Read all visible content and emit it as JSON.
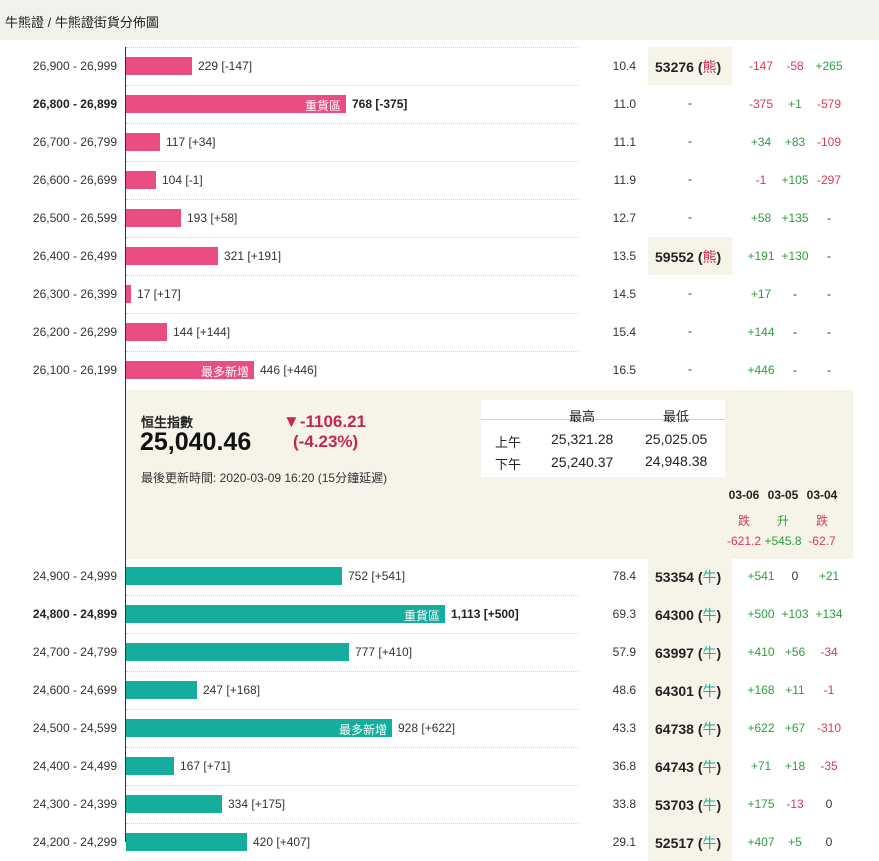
{
  "breadcrumb": "牛熊證 / 牛熊證街貨分佈圖",
  "colors": {
    "bear": "#ea4d83",
    "bull": "#14ad9e",
    "positive": "#2e9e3e",
    "negative": "#d63a56"
  },
  "bear_rows": [
    {
      "range": "26,900 - 26,999",
      "label": "229 [-147]",
      "count": 229,
      "inner": "",
      "pct": "10.4",
      "code": "53276",
      "kind": "熊",
      "c1": "-147",
      "c2": "-58",
      "c3": "+265"
    },
    {
      "range": "26,800 - 26,899",
      "label": "768 [-375]",
      "count": 768,
      "inner": "重貨區",
      "pct": "11.0",
      "code": "-",
      "kind": "",
      "c1": "-375",
      "c2": "+1",
      "c3": "-579"
    },
    {
      "range": "26,700 - 26,799",
      "label": "117 [+34]",
      "count": 117,
      "inner": "",
      "pct": "11.1",
      "code": "-",
      "kind": "",
      "c1": "+34",
      "c2": "+83",
      "c3": "-109"
    },
    {
      "range": "26,600 - 26,699",
      "label": "104 [-1]",
      "count": 104,
      "inner": "",
      "pct": "11.9",
      "code": "-",
      "kind": "",
      "c1": "-1",
      "c2": "+105",
      "c3": "-297"
    },
    {
      "range": "26,500 - 26,599",
      "label": "193 [+58]",
      "count": 193,
      "inner": "",
      "pct": "12.7",
      "code": "-",
      "kind": "",
      "c1": "+58",
      "c2": "+135",
      "c3": "-"
    },
    {
      "range": "26,400 - 26,499",
      "label": "321 [+191]",
      "count": 321,
      "inner": "",
      "pct": "13.5",
      "code": "59552",
      "kind": "熊",
      "c1": "+191",
      "c2": "+130",
      "c3": "-"
    },
    {
      "range": "26,300 - 26,399",
      "label": "17 [+17]",
      "count": 17,
      "inner": "",
      "pct": "14.5",
      "code": "-",
      "kind": "",
      "c1": "+17",
      "c2": "-",
      "c3": "-"
    },
    {
      "range": "26,200 - 26,299",
      "label": "144 [+144]",
      "count": 144,
      "inner": "",
      "pct": "15.4",
      "code": "-",
      "kind": "",
      "c1": "+144",
      "c2": "-",
      "c3": "-"
    },
    {
      "range": "26,100 - 26,199",
      "label": "446 [+446]",
      "count": 446,
      "inner": "最多新增",
      "pct": "16.5",
      "code": "-",
      "kind": "",
      "c1": "+446",
      "c2": "-",
      "c3": "-"
    }
  ],
  "index": {
    "name": "恒生指數",
    "value": "25,040.46",
    "change": "▼-1106.21",
    "change_pct": "(-4.23%)",
    "updated": "最後更新時間: 2020-03-09 16:20 (15分鐘延遲)",
    "hilo": {
      "high_label": "最高",
      "low_label": "最低",
      "am_label": "上午",
      "am_high": "25,321.28",
      "am_low": "25,025.05",
      "pm_label": "下午",
      "pm_high": "25,240.37",
      "pm_low": "24,948.38"
    },
    "days": [
      {
        "date": "03-06",
        "move": "跌",
        "points": "-621.2"
      },
      {
        "date": "03-05",
        "move": "升",
        "points": "+545.8"
      },
      {
        "date": "03-04",
        "move": "跌",
        "points": "-62.7"
      }
    ]
  },
  "bull_rows": [
    {
      "range": "24,900 - 24,999",
      "label": "752 [+541]",
      "count": 752,
      "inner": "",
      "pct": "78.4",
      "code": "53354",
      "kind": "牛",
      "c1": "+541",
      "c2": "0",
      "c3": "+21"
    },
    {
      "range": "24,800 - 24,899",
      "label": "1,113 [+500]",
      "count": 1113,
      "inner": "重貨區",
      "pct": "69.3",
      "code": "64300",
      "kind": "牛",
      "c1": "+500",
      "c2": "+103",
      "c3": "+134"
    },
    {
      "range": "24,700 - 24,799",
      "label": "777 [+410]",
      "count": 777,
      "inner": "",
      "pct": "57.9",
      "code": "63997",
      "kind": "牛",
      "c1": "+410",
      "c2": "+56",
      "c3": "-34"
    },
    {
      "range": "24,600 - 24,699",
      "label": "247 [+168]",
      "count": 247,
      "inner": "",
      "pct": "48.6",
      "code": "64301",
      "kind": "牛",
      "c1": "+168",
      "c2": "+11",
      "c3": "-1"
    },
    {
      "range": "24,500 - 24,599",
      "label": "928 [+622]",
      "count": 928,
      "inner": "最多新增",
      "pct": "43.3",
      "code": "64738",
      "kind": "牛",
      "c1": "+622",
      "c2": "+67",
      "c3": "-310"
    },
    {
      "range": "24,400 - 24,499",
      "label": "167 [+71]",
      "count": 167,
      "inner": "",
      "pct": "36.8",
      "code": "64743",
      "kind": "牛",
      "c1": "+71",
      "c2": "+18",
      "c3": "-35"
    },
    {
      "range": "24,300 - 24,399",
      "label": "334 [+175]",
      "count": 334,
      "inner": "",
      "pct": "33.8",
      "code": "53703",
      "kind": "牛",
      "c1": "+175",
      "c2": "-13",
      "c3": "0"
    },
    {
      "range": "24,200 - 24,299",
      "label": "420 [+407]",
      "count": 420,
      "inner": "",
      "pct": "29.1",
      "code": "52517",
      "kind": "牛",
      "c1": "+407",
      "c2": "+5",
      "c3": "0"
    }
  ]
}
